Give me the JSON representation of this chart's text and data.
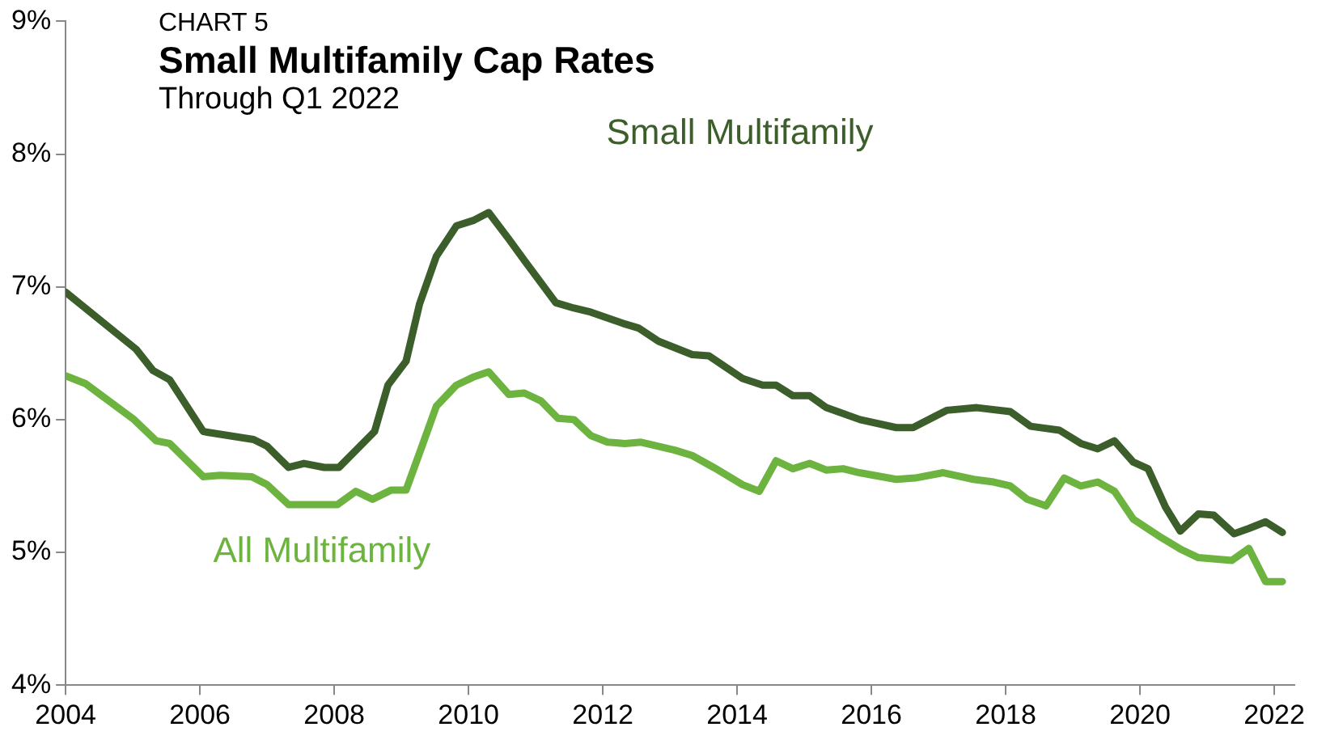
{
  "chart_data": {
    "type": "line",
    "title": "Small Multifamily Cap Rates",
    "subtitle": "Through Q1 2022",
    "annotations": [
      "CHART 5"
    ],
    "xlim": [
      2004,
      2022.3
    ],
    "xticks": [
      2004,
      2006,
      2008,
      2010,
      2012,
      2014,
      2016,
      2018,
      2020,
      2022
    ],
    "ylim": [
      4,
      9
    ],
    "yticks": [
      {
        "value": 4,
        "label": "4%"
      },
      {
        "value": 5,
        "label": "5%"
      },
      {
        "value": 6,
        "label": "6%"
      },
      {
        "value": 7,
        "label": "7%"
      },
      {
        "value": 8,
        "label": "8%"
      },
      {
        "value": 9,
        "label": "9%"
      }
    ],
    "grid": false,
    "legend": false,
    "marker": "none",
    "line_style": "solid",
    "series": [
      {
        "name": "Small Multifamily",
        "color": "#3b5e2b",
        "x": [
          2004.0,
          2005.05,
          2005.3,
          2005.55,
          2006.05,
          2006.8,
          2007.0,
          2007.32,
          2007.55,
          2007.85,
          2008.07,
          2008.6,
          2008.8,
          2009.07,
          2009.27,
          2009.52,
          2009.82,
          2010.07,
          2010.3,
          2010.6,
          2010.83,
          2011.3,
          2011.57,
          2011.82,
          2012.33,
          2012.53,
          2012.83,
          2013.33,
          2013.58,
          2014.08,
          2014.38,
          2014.58,
          2014.83,
          2015.08,
          2015.33,
          2015.83,
          2016.37,
          2016.62,
          2017.12,
          2017.57,
          2018.07,
          2018.37,
          2018.8,
          2019.12,
          2019.37,
          2019.62,
          2019.9,
          2020.12,
          2020.38,
          2020.6,
          2020.87,
          2021.1,
          2021.4,
          2021.62,
          2021.87,
          2022.12
        ],
        "values": [
          6.96,
          6.53,
          6.37,
          6.3,
          5.91,
          5.85,
          5.8,
          5.64,
          5.67,
          5.64,
          5.64,
          5.91,
          6.26,
          6.44,
          6.87,
          7.23,
          7.46,
          7.5,
          7.56,
          7.36,
          7.2,
          6.88,
          6.84,
          6.81,
          6.72,
          6.69,
          6.59,
          6.49,
          6.48,
          6.31,
          6.26,
          6.26,
          6.18,
          6.18,
          6.09,
          6.0,
          5.94,
          5.94,
          6.07,
          6.09,
          6.06,
          5.95,
          5.92,
          5.82,
          5.78,
          5.84,
          5.68,
          5.63,
          5.34,
          5.16,
          5.29,
          5.28,
          5.14,
          5.18,
          5.23,
          5.15
        ]
      },
      {
        "name": "All Multifamily",
        "color": "#6db33f",
        "x": [
          2004.0,
          2004.3,
          2005.02,
          2005.35,
          2005.55,
          2006.05,
          2006.3,
          2006.77,
          2007.0,
          2007.32,
          2007.85,
          2008.05,
          2008.32,
          2008.57,
          2008.85,
          2009.07,
          2009.3,
          2009.52,
          2009.82,
          2010.07,
          2010.3,
          2010.6,
          2010.83,
          2011.08,
          2011.33,
          2011.57,
          2011.82,
          2012.07,
          2012.33,
          2012.57,
          2013.07,
          2013.33,
          2013.65,
          2014.08,
          2014.33,
          2014.58,
          2014.83,
          2015.08,
          2015.33,
          2015.58,
          2015.82,
          2016.37,
          2016.65,
          2017.07,
          2017.52,
          2017.82,
          2018.07,
          2018.32,
          2018.6,
          2018.87,
          2019.12,
          2019.37,
          2019.62,
          2019.9,
          2020.32,
          2020.62,
          2020.87,
          2021.37,
          2021.62,
          2021.87,
          2022.12
        ],
        "values": [
          6.33,
          6.27,
          6.0,
          5.84,
          5.82,
          5.57,
          5.58,
          5.57,
          5.51,
          5.36,
          5.36,
          5.36,
          5.46,
          5.4,
          5.47,
          5.47,
          5.79,
          6.1,
          6.26,
          6.32,
          6.36,
          6.19,
          6.2,
          6.14,
          6.01,
          6.0,
          5.88,
          5.83,
          5.82,
          5.83,
          5.77,
          5.73,
          5.64,
          5.51,
          5.46,
          5.69,
          5.63,
          5.67,
          5.62,
          5.63,
          5.6,
          5.55,
          5.56,
          5.6,
          5.55,
          5.53,
          5.5,
          5.4,
          5.35,
          5.56,
          5.5,
          5.53,
          5.46,
          5.25,
          5.11,
          5.02,
          4.96,
          4.94,
          5.03,
          4.78,
          4.78
        ]
      }
    ]
  }
}
